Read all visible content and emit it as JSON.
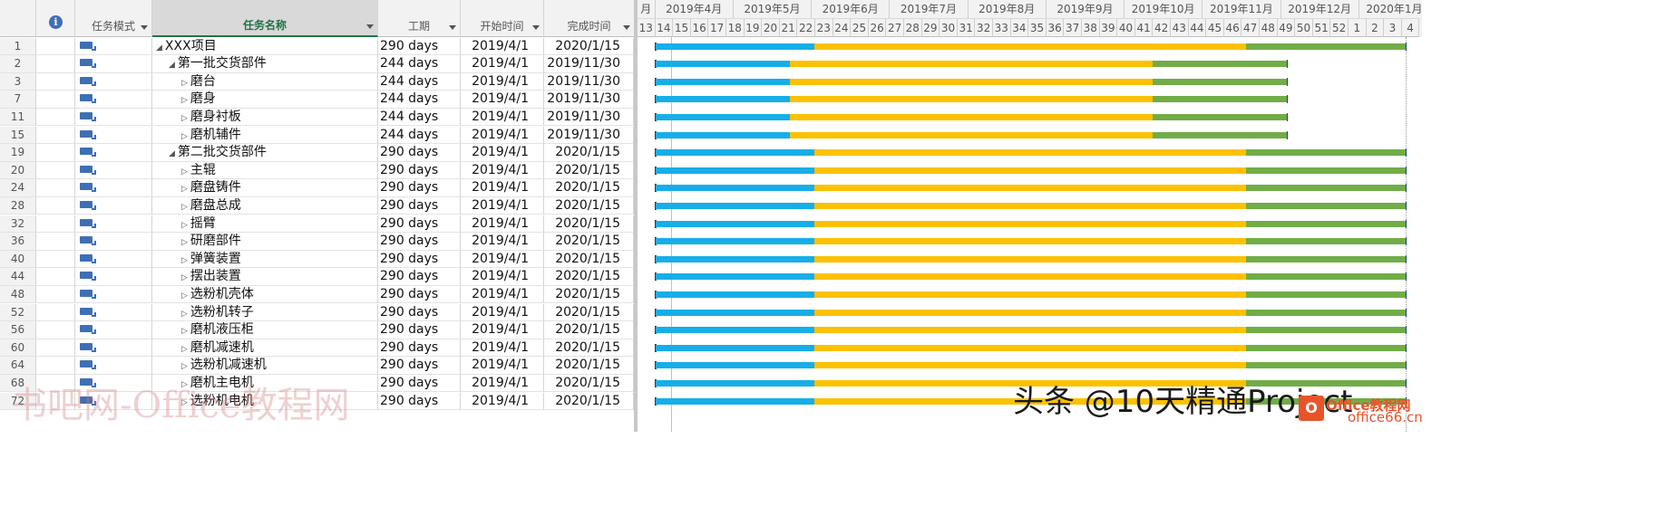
{
  "columns": {
    "mode": "任务模式",
    "name": "任务名称",
    "duration": "工期",
    "start": "开始时间",
    "finish": "完成时间"
  },
  "info_icon_label": "i",
  "timescale": {
    "months": [
      "月",
      "2019年4月",
      "2019年5月",
      "2019年6月",
      "2019年7月",
      "2019年8月",
      "2019年9月",
      "2019年10月",
      "2019年11月",
      "2019年12月",
      "2020年1月"
    ],
    "weeks": [
      "13",
      "14",
      "15",
      "16",
      "17",
      "18",
      "19",
      "20",
      "21",
      "22",
      "23",
      "24",
      "25",
      "26",
      "27",
      "28",
      "29",
      "30",
      "31",
      "32",
      "33",
      "34",
      "35",
      "36",
      "37",
      "38",
      "39",
      "40",
      "41",
      "42",
      "43",
      "44",
      "45",
      "46",
      "47",
      "48",
      "49",
      "50",
      "51",
      "52",
      "1",
      "2",
      "3",
      "4"
    ]
  },
  "tasks": [
    {
      "id": "1",
      "name": "XXX项目",
      "level": 0,
      "duration": "290 days",
      "start": "2019/4/1",
      "finish": "2020/1/15",
      "progress": [
        0.21,
        0.78,
        0.99
      ]
    },
    {
      "id": "2",
      "name": "第一批交货部件",
      "level": 1,
      "duration": "244 days",
      "start": "2019/4/1",
      "finish": "2019/11/30",
      "progress": [
        0.21,
        0.78,
        0.99
      ]
    },
    {
      "id": "3",
      "name": "磨台",
      "level": 2,
      "duration": "244 days",
      "start": "2019/4/1",
      "finish": "2019/11/30",
      "progress": [
        0.21,
        0.78,
        0.99
      ]
    },
    {
      "id": "7",
      "name": "磨身",
      "level": 2,
      "duration": "244 days",
      "start": "2019/4/1",
      "finish": "2019/11/30",
      "progress": [
        0.21,
        0.78,
        0.99
      ]
    },
    {
      "id": "11",
      "name": "磨身衬板",
      "level": 2,
      "duration": "244 days",
      "start": "2019/4/1",
      "finish": "2019/11/30",
      "progress": [
        0.21,
        0.78,
        0.99
      ]
    },
    {
      "id": "15",
      "name": "磨机辅件",
      "level": 2,
      "duration": "244 days",
      "start": "2019/4/1",
      "finish": "2019/11/30",
      "progress": [
        0.21,
        0.78,
        0.99
      ]
    },
    {
      "id": "19",
      "name": "第二批交货部件",
      "level": 1,
      "duration": "290 days",
      "start": "2019/4/1",
      "finish": "2020/1/15",
      "progress": [
        0.21,
        0.78,
        0.99
      ]
    },
    {
      "id": "20",
      "name": "主辊",
      "level": 2,
      "duration": "290 days",
      "start": "2019/4/1",
      "finish": "2020/1/15",
      "progress": [
        0.21,
        0.78,
        0.99
      ]
    },
    {
      "id": "24",
      "name": "磨盘铸件",
      "level": 2,
      "duration": "290 days",
      "start": "2019/4/1",
      "finish": "2020/1/15",
      "progress": [
        0.21,
        0.78,
        0.99
      ]
    },
    {
      "id": "28",
      "name": "磨盘总成",
      "level": 2,
      "duration": "290 days",
      "start": "2019/4/1",
      "finish": "2020/1/15",
      "progress": [
        0.21,
        0.78,
        0.99
      ]
    },
    {
      "id": "32",
      "name": "摇臂",
      "level": 2,
      "duration": "290 days",
      "start": "2019/4/1",
      "finish": "2020/1/15",
      "progress": [
        0.21,
        0.78,
        0.99
      ]
    },
    {
      "id": "36",
      "name": "研磨部件",
      "level": 2,
      "duration": "290 days",
      "start": "2019/4/1",
      "finish": "2020/1/15",
      "progress": [
        0.21,
        0.78,
        0.99
      ]
    },
    {
      "id": "40",
      "name": "弹簧装置",
      "level": 2,
      "duration": "290 days",
      "start": "2019/4/1",
      "finish": "2020/1/15",
      "progress": [
        0.21,
        0.78,
        0.99
      ]
    },
    {
      "id": "44",
      "name": "摆出装置",
      "level": 2,
      "duration": "290 days",
      "start": "2019/4/1",
      "finish": "2020/1/15",
      "progress": [
        0.21,
        0.78,
        0.99
      ]
    },
    {
      "id": "48",
      "name": "选粉机壳体",
      "level": 2,
      "duration": "290 days",
      "start": "2019/4/1",
      "finish": "2020/1/15",
      "progress": [
        0.21,
        0.78,
        0.99
      ]
    },
    {
      "id": "52",
      "name": "选粉机转子",
      "level": 2,
      "duration": "290 days",
      "start": "2019/4/1",
      "finish": "2020/1/15",
      "progress": [
        0.21,
        0.78,
        0.99
      ]
    },
    {
      "id": "56",
      "name": "磨机液压柜",
      "level": 2,
      "duration": "290 days",
      "start": "2019/4/1",
      "finish": "2020/1/15",
      "progress": [
        0.21,
        0.78,
        0.99
      ]
    },
    {
      "id": "60",
      "name": "磨机减速机",
      "level": 2,
      "duration": "290 days",
      "start": "2019/4/1",
      "finish": "2020/1/15",
      "progress": [
        0.21,
        0.78,
        0.99
      ]
    },
    {
      "id": "64",
      "name": "选粉机减速机",
      "level": 2,
      "duration": "290 days",
      "start": "2019/4/1",
      "finish": "2020/1/15",
      "progress": [
        0.21,
        0.78,
        0.99
      ]
    },
    {
      "id": "68",
      "name": "磨机主电机",
      "level": 2,
      "duration": "290 days",
      "start": "2019/4/1",
      "finish": "2020/1/15",
      "progress": [
        0.21,
        0.78,
        0.99
      ]
    },
    {
      "id": "72",
      "name": "选粉机电机",
      "level": 2,
      "duration": "290 days",
      "start": "2019/4/1",
      "finish": "2020/1/15",
      "progress": [
        0.21,
        0.78,
        0.99
      ]
    }
  ],
  "bar_colors": {
    "blue": "#17aee8",
    "orange": "#fcc100",
    "green": "#70ad47"
  },
  "watermarks": {
    "left": "书吧网-Office教程网",
    "right": "头条 @10天精通Project",
    "logo_letter": "O",
    "logo_text": "Office教程网",
    "logo_url_text": "office66.cn"
  }
}
